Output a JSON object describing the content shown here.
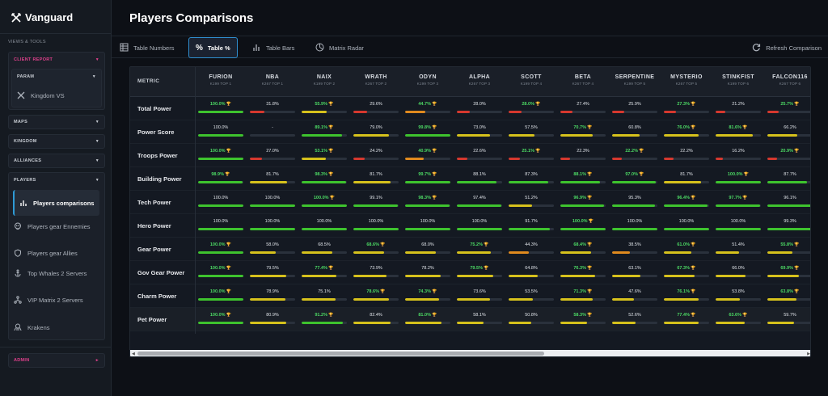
{
  "app": {
    "brand": "Vanguard",
    "section_label": "VIEWS & TOOLS"
  },
  "sidebar": {
    "client_report": "CLIENT REPORT",
    "param": {
      "label": "PARAM",
      "items": [
        "Kingdom VS"
      ]
    },
    "maps": "MAPS",
    "kingdom": "KINGDOM",
    "alliances": "ALLIANCES",
    "players": {
      "label": "PLAYERS",
      "items": [
        {
          "label": "Players comparisons",
          "icon": "bar-chart-icon"
        },
        {
          "label": "Players gear Ennemies",
          "icon": "skull-icon"
        },
        {
          "label": "Players gear Allies",
          "icon": "shield-icon"
        },
        {
          "label": "Top Whales 2 Servers",
          "icon": "anchor-icon"
        },
        {
          "label": "VIP Matrix 2 Servers",
          "icon": "network-icon"
        },
        {
          "label": "Krakens",
          "icon": "kraken-icon"
        }
      ]
    },
    "admin": "ADMIN"
  },
  "page": {
    "title": "Players Comparisons"
  },
  "tabs": [
    "Table Numbers",
    "Table %",
    "Table Bars",
    "Matrix Radar"
  ],
  "refresh_label": "Refresh Comparison",
  "table": {
    "metric_header": "METRIC",
    "columns": [
      {
        "name": "FURION",
        "sub": "K199 TOP 1"
      },
      {
        "name": "NBA",
        "sub": "K267 TOP 1"
      },
      {
        "name": "NAIX",
        "sub": "K199 TOP 2"
      },
      {
        "name": "WRATH",
        "sub": "K267 TOP 2"
      },
      {
        "name": "ODYN",
        "sub": "K199 TOP 3"
      },
      {
        "name": "ALPHA",
        "sub": "K267 TOP 3"
      },
      {
        "name": "SCOTT",
        "sub": "K199 TOP 4"
      },
      {
        "name": "BETA",
        "sub": "K267 TOP 4"
      },
      {
        "name": "SERPENTINE",
        "sub": "K199 TOP 5"
      },
      {
        "name": "MYSTERIO",
        "sub": "K267 TOP 5"
      },
      {
        "name": "STINKFIST",
        "sub": "K199 TOP 6"
      },
      {
        "name": "FALCON116",
        "sub": "K267 TOP 6"
      }
    ],
    "rows": [
      {
        "metric": "Total Power",
        "cells": [
          {
            "v": "100.0%",
            "p": 100,
            "b": true
          },
          {
            "v": "31.8%",
            "p": 31.8
          },
          {
            "v": "55.9%",
            "p": 55.9,
            "b": true
          },
          {
            "v": "29.6%",
            "p": 29.6
          },
          {
            "v": "44.7%",
            "p": 44.7,
            "b": true
          },
          {
            "v": "28.0%",
            "p": 28.0
          },
          {
            "v": "28.0%",
            "p": 28.0,
            "b": true
          },
          {
            "v": "27.4%",
            "p": 27.4
          },
          {
            "v": "25.9%",
            "p": 25.9
          },
          {
            "v": "27.3%",
            "p": 27.3,
            "b": true
          },
          {
            "v": "21.2%",
            "p": 21.2
          },
          {
            "v": "25.7%",
            "p": 25.7,
            "b": true
          }
        ]
      },
      {
        "metric": "Power Score",
        "cells": [
          {
            "v": "100.0%",
            "p": 100
          },
          {
            "v": "-",
            "p": 0
          },
          {
            "v": "89.1%",
            "p": 89.1,
            "b": true
          },
          {
            "v": "79.0%",
            "p": 79.0
          },
          {
            "v": "99.8%",
            "p": 99.8,
            "b": true
          },
          {
            "v": "73.0%",
            "p": 73.0
          },
          {
            "v": "57.5%",
            "p": 57.5
          },
          {
            "v": "70.7%",
            "p": 70.7,
            "b": true
          },
          {
            "v": "60.8%",
            "p": 60.8
          },
          {
            "v": "76.0%",
            "p": 76.0,
            "b": true
          },
          {
            "v": "81.6%",
            "p": 81.6,
            "b": true
          },
          {
            "v": "66.2%",
            "p": 66.2
          }
        ]
      },
      {
        "metric": "Troops Power",
        "cells": [
          {
            "v": "100.0%",
            "p": 100,
            "b": true
          },
          {
            "v": "27.0%",
            "p": 27.0
          },
          {
            "v": "53.1%",
            "p": 53.1,
            "b": true
          },
          {
            "v": "24.2%",
            "p": 24.2
          },
          {
            "v": "40.9%",
            "p": 40.9,
            "b": true
          },
          {
            "v": "22.6%",
            "p": 22.6
          },
          {
            "v": "25.1%",
            "p": 25.1,
            "b": true
          },
          {
            "v": "22.3%",
            "p": 22.3
          },
          {
            "v": "22.2%",
            "p": 22.2,
            "b": true
          },
          {
            "v": "22.2%",
            "p": 22.2
          },
          {
            "v": "16.2%",
            "p": 16.2
          },
          {
            "v": "20.9%",
            "p": 20.9,
            "b": true
          }
        ]
      },
      {
        "metric": "Building Power",
        "cells": [
          {
            "v": "98.9%",
            "p": 98.9,
            "b": true
          },
          {
            "v": "81.7%",
            "p": 81.7
          },
          {
            "v": "98.3%",
            "p": 98.3,
            "b": true
          },
          {
            "v": "81.7%",
            "p": 81.7
          },
          {
            "v": "99.7%",
            "p": 99.7,
            "b": true
          },
          {
            "v": "88.1%",
            "p": 88.1
          },
          {
            "v": "87.3%",
            "p": 87.3
          },
          {
            "v": "88.1%",
            "p": 88.1,
            "b": true
          },
          {
            "v": "97.0%",
            "p": 97.0,
            "b": true
          },
          {
            "v": "81.7%",
            "p": 81.7
          },
          {
            "v": "100.0%",
            "p": 100,
            "b": true
          },
          {
            "v": "87.7%",
            "p": 87.7
          }
        ]
      },
      {
        "metric": "Tech Power",
        "cells": [
          {
            "v": "100.0%",
            "p": 100
          },
          {
            "v": "100.0%",
            "p": 100
          },
          {
            "v": "100.0%",
            "p": 100,
            "b": true
          },
          {
            "v": "99.1%",
            "p": 99.1
          },
          {
            "v": "98.3%",
            "p": 98.3,
            "b": true
          },
          {
            "v": "97.4%",
            "p": 97.4
          },
          {
            "v": "51.2%",
            "p": 51.2
          },
          {
            "v": "96.9%",
            "p": 96.9,
            "b": true
          },
          {
            "v": "95.3%",
            "p": 95.3
          },
          {
            "v": "96.4%",
            "p": 96.4,
            "b": true
          },
          {
            "v": "97.7%",
            "p": 97.7,
            "b": true
          },
          {
            "v": "96.1%",
            "p": 96.1
          }
        ]
      },
      {
        "metric": "Hero Power",
        "cells": [
          {
            "v": "100.0%",
            "p": 100
          },
          {
            "v": "100.0%",
            "p": 100
          },
          {
            "v": "100.0%",
            "p": 100
          },
          {
            "v": "100.0%",
            "p": 100
          },
          {
            "v": "100.0%",
            "p": 100
          },
          {
            "v": "100.0%",
            "p": 100
          },
          {
            "v": "91.7%",
            "p": 91.7
          },
          {
            "v": "100.0%",
            "p": 100,
            "b": true
          },
          {
            "v": "100.0%",
            "p": 100
          },
          {
            "v": "100.0%",
            "p": 100
          },
          {
            "v": "100.0%",
            "p": 100
          },
          {
            "v": "99.3%",
            "p": 99.3
          }
        ]
      },
      {
        "metric": "Gear Power",
        "cells": [
          {
            "v": "100.0%",
            "p": 100,
            "b": true
          },
          {
            "v": "58.0%",
            "p": 58.0
          },
          {
            "v": "68.5%",
            "p": 68.5
          },
          {
            "v": "68.6%",
            "p": 68.6,
            "b": true
          },
          {
            "v": "68.0%",
            "p": 68.0
          },
          {
            "v": "75.2%",
            "p": 75.2,
            "b": true
          },
          {
            "v": "44.3%",
            "p": 44.3
          },
          {
            "v": "68.4%",
            "p": 68.4,
            "b": true
          },
          {
            "v": "38.5%",
            "p": 38.5
          },
          {
            "v": "61.0%",
            "p": 61.0,
            "b": true
          },
          {
            "v": "51.4%",
            "p": 51.4
          },
          {
            "v": "55.8%",
            "p": 55.8,
            "b": true
          }
        ]
      },
      {
        "metric": "Gov Gear Power",
        "cells": [
          {
            "v": "100.0%",
            "p": 100,
            "b": true
          },
          {
            "v": "79.5%",
            "p": 79.5
          },
          {
            "v": "77.4%",
            "p": 77.4,
            "b": true
          },
          {
            "v": "73.9%",
            "p": 73.9
          },
          {
            "v": "78.2%",
            "p": 78.2
          },
          {
            "v": "79.5%",
            "p": 79.5,
            "b": true
          },
          {
            "v": "64.8%",
            "p": 64.8
          },
          {
            "v": "76.3%",
            "p": 76.3,
            "b": true
          },
          {
            "v": "63.1%",
            "p": 63.1
          },
          {
            "v": "67.3%",
            "p": 67.3,
            "b": true
          },
          {
            "v": "66.0%",
            "p": 66.0
          },
          {
            "v": "69.9%",
            "p": 69.9,
            "b": true
          }
        ]
      },
      {
        "metric": "Charm Power",
        "cells": [
          {
            "v": "100.0%",
            "p": 100,
            "b": true
          },
          {
            "v": "78.9%",
            "p": 78.9
          },
          {
            "v": "75.1%",
            "p": 75.1
          },
          {
            "v": "78.6%",
            "p": 78.6,
            "b": true
          },
          {
            "v": "74.3%",
            "p": 74.3,
            "b": true
          },
          {
            "v": "73.6%",
            "p": 73.6
          },
          {
            "v": "53.5%",
            "p": 53.5
          },
          {
            "v": "71.3%",
            "p": 71.3,
            "b": true
          },
          {
            "v": "47.6%",
            "p": 47.6
          },
          {
            "v": "76.1%",
            "p": 76.1,
            "b": true
          },
          {
            "v": "53.8%",
            "p": 53.8
          },
          {
            "v": "63.8%",
            "p": 63.8,
            "b": true
          }
        ]
      },
      {
        "metric": "Pet Power",
        "cells": [
          {
            "v": "100.0%",
            "p": 100,
            "b": true
          },
          {
            "v": "80.9%",
            "p": 80.9
          },
          {
            "v": "91.2%",
            "p": 91.2,
            "b": true
          },
          {
            "v": "82.4%",
            "p": 82.4
          },
          {
            "v": "81.0%",
            "p": 81.0,
            "b": true
          },
          {
            "v": "58.1%",
            "p": 58.1
          },
          {
            "v": "50.8%",
            "p": 50.8
          },
          {
            "v": "58.3%",
            "p": 58.3,
            "b": true
          },
          {
            "v": "52.6%",
            "p": 52.6
          },
          {
            "v": "77.4%",
            "p": 77.4,
            "b": true
          },
          {
            "v": "63.6%",
            "p": 63.6,
            "b": true
          },
          {
            "v": "59.7%",
            "p": 59.7
          }
        ]
      }
    ]
  },
  "colors": {
    "accent": "#2f9bd6",
    "best": "#4cd964",
    "pink": "#e0408c",
    "green": "#3ec32e",
    "yellow": "#d6c11c",
    "orange": "#e08a1e",
    "red": "#d6382e"
  }
}
